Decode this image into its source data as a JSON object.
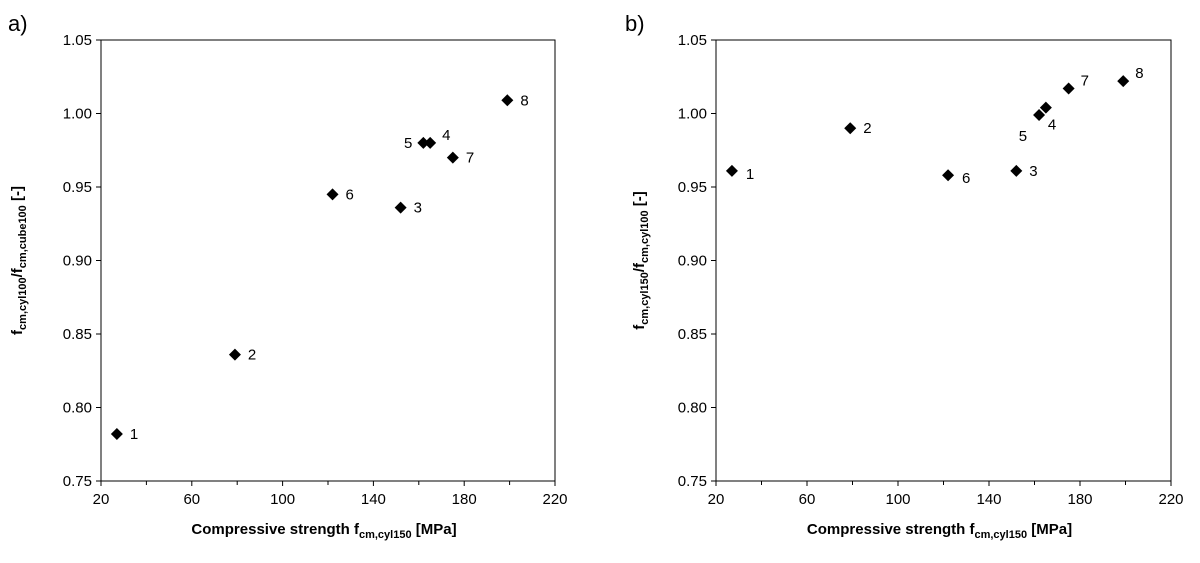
{
  "chart_data": [
    {
      "panel_label": "a)",
      "type": "scatter",
      "xlabel": {
        "main": "Compressive strength f",
        "sub": "cm,cyl150",
        "unit": " [MPa]"
      },
      "ylabel": {
        "parts": [
          "f",
          "cm,cyl100",
          "/f",
          "cm,cube100",
          " [-]"
        ]
      },
      "xlim": [
        20,
        220
      ],
      "ylim": [
        0.75,
        1.05
      ],
      "xticks": [
        20,
        60,
        100,
        140,
        180,
        220
      ],
      "xtick_labels": [
        "20",
        "60",
        "100",
        "140",
        "180",
        "220"
      ],
      "yticks": [
        0.75,
        0.8,
        0.85,
        0.9,
        0.95,
        1.0,
        1.05
      ],
      "ytick_labels": [
        "0.75",
        "0.80",
        "0.85",
        "0.90",
        "0.95",
        "1.00",
        "1.05"
      ],
      "marker": "diamond",
      "marker_color": "#000000",
      "grid": false,
      "points": [
        {
          "label": "1",
          "x": 27,
          "y": 0.782,
          "label_pos": "right"
        },
        {
          "label": "2",
          "x": 79,
          "y": 0.836,
          "label_pos": "right"
        },
        {
          "label": "3",
          "x": 152,
          "y": 0.936,
          "label_pos": "right"
        },
        {
          "label": "4",
          "x": 165,
          "y": 0.98,
          "label_pos": "right-up"
        },
        {
          "label": "5",
          "x": 162,
          "y": 0.98,
          "label_pos": "left"
        },
        {
          "label": "6",
          "x": 122,
          "y": 0.945,
          "label_pos": "right"
        },
        {
          "label": "7",
          "x": 175,
          "y": 0.97,
          "label_pos": "right"
        },
        {
          "label": "8",
          "x": 199,
          "y": 1.009,
          "label_pos": "right"
        }
      ]
    },
    {
      "panel_label": "b)",
      "type": "scatter",
      "xlabel": {
        "main": "Compressive strength f",
        "sub": "cm,cyl150",
        "unit": " [MPa]"
      },
      "ylabel": {
        "parts": [
          "f",
          "cm,cyl150",
          "/f",
          "cm,cyl100",
          " [-]"
        ]
      },
      "xlim": [
        20,
        220
      ],
      "ylim": [
        0.75,
        1.05
      ],
      "xticks": [
        20,
        60,
        100,
        140,
        180,
        220
      ],
      "xtick_labels": [
        "20",
        "60",
        "100",
        "140",
        "180",
        "220"
      ],
      "yticks": [
        0.75,
        0.8,
        0.85,
        0.9,
        0.95,
        1.0,
        1.05
      ],
      "ytick_labels": [
        "0.75",
        "0.80",
        "0.85",
        "0.90",
        "0.95",
        "1.00",
        "1.05"
      ],
      "marker": "diamond",
      "marker_color": "#000000",
      "grid": false,
      "points": [
        {
          "label": "1",
          "x": 27,
          "y": 0.961,
          "label_pos": "right-down"
        },
        {
          "label": "2",
          "x": 79,
          "y": 0.99,
          "label_pos": "right"
        },
        {
          "label": "3",
          "x": 152,
          "y": 0.961,
          "label_pos": "right"
        },
        {
          "label": "4",
          "x": 165,
          "y": 1.004,
          "label_pos": "below-right"
        },
        {
          "label": "5",
          "x": 162,
          "y": 0.999,
          "label_pos": "below-left"
        },
        {
          "label": "6",
          "x": 122,
          "y": 0.958,
          "label_pos": "right-down"
        },
        {
          "label": "7",
          "x": 175,
          "y": 1.017,
          "label_pos": "right-up"
        },
        {
          "label": "8",
          "x": 199,
          "y": 1.022,
          "label_pos": "right-up"
        }
      ]
    }
  ]
}
